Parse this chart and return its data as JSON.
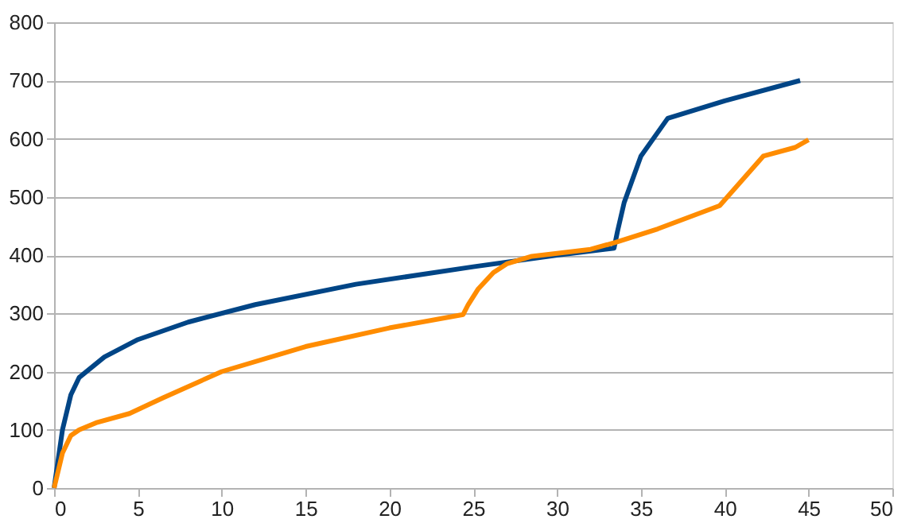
{
  "chart_data": {
    "type": "line",
    "xlim": [
      0,
      50
    ],
    "xticks": [
      0,
      5,
      10,
      15,
      20,
      25,
      30,
      35,
      40,
      45,
      50
    ],
    "ylim": [
      0,
      800
    ],
    "yticks": [
      0,
      100,
      200,
      300,
      400,
      500,
      600,
      700,
      800
    ],
    "grid": "y",
    "legend": false,
    "marker": "none",
    "line_style": "solid",
    "series": [
      {
        "color": "#004586",
        "x": [
          0,
          0.5,
          1,
          1.5,
          3,
          5,
          8,
          12,
          18,
          25,
          30,
          33.4,
          33.6,
          34,
          35,
          36.6,
          40,
          44.5
        ],
        "values": [
          0,
          100,
          160,
          190,
          225,
          255,
          285,
          315,
          350,
          380,
          400,
          412,
          440,
          490,
          570,
          635,
          665,
          700
        ]
      },
      {
        "color": "#ff8c00",
        "x": [
          0,
          0.5,
          1,
          1.5,
          2.5,
          4.5,
          6.5,
          10,
          15,
          20,
          24.4,
          24.7,
          25.3,
          26.2,
          27,
          28.5,
          32,
          33.5,
          36,
          39.7,
          42.3,
          44.2,
          45
        ],
        "values": [
          0,
          60,
          90,
          100,
          112,
          128,
          155,
          200,
          243,
          275,
          298,
          315,
          342,
          370,
          385,
          398,
          410,
          422,
          445,
          485,
          570,
          585,
          598
        ]
      }
    ]
  }
}
